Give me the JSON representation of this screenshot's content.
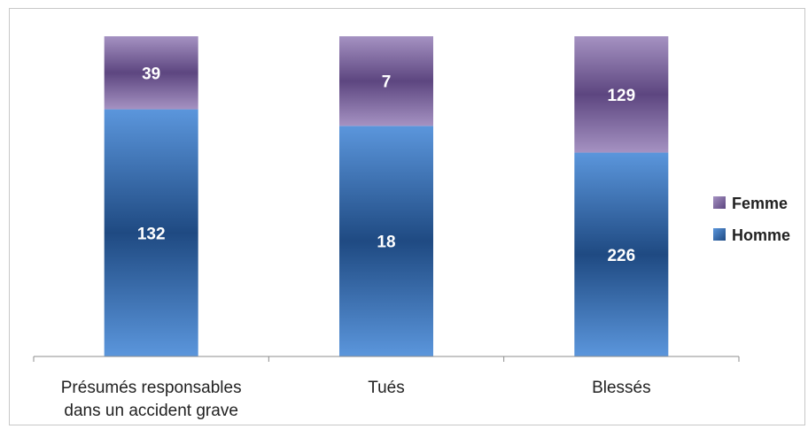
{
  "chart_data": {
    "type": "bar",
    "stacked": true,
    "normalized": true,
    "categories": [
      [
        "Présumés responsables",
        "dans un accident grave"
      ],
      [
        "Tués"
      ],
      [
        "Blessés"
      ]
    ],
    "series": [
      {
        "name": "Homme",
        "values": [
          132,
          18,
          226
        ],
        "color": "#2e5fa0"
      },
      {
        "name": "Femme",
        "values": [
          39,
          7,
          129
        ],
        "color": "#6b5588"
      }
    ],
    "legend_order": [
      "Femme",
      "Homme"
    ],
    "legend_position": "right",
    "ylim": [
      0,
      1
    ],
    "grid": false,
    "title": "",
    "xlabel": "",
    "ylabel": ""
  }
}
